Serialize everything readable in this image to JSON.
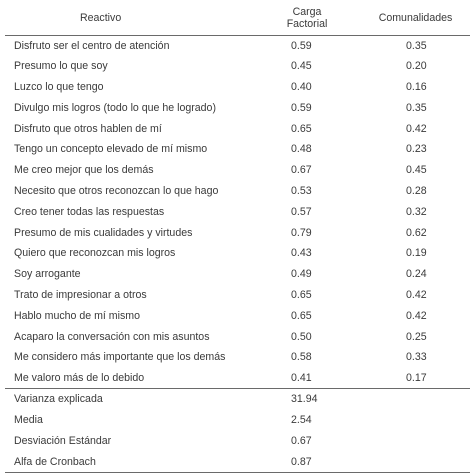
{
  "headers": {
    "reactivo": "Reactivo",
    "carga_line1": "Carga",
    "carga_line2": "Factorial",
    "comunalidades": "Comunalidades"
  },
  "rows": [
    {
      "item": "Disfruto ser el centro de atención",
      "carga": "0.59",
      "comunalidad": "0.35"
    },
    {
      "item": "Presumo lo que soy",
      "carga": "0.45",
      "comunalidad": "0.20"
    },
    {
      "item": "Luzco lo que tengo",
      "carga": "0.40",
      "comunalidad": "0.16"
    },
    {
      "item": "Divulgo mis logros (todo lo que he logrado)",
      "carga": "0.59",
      "comunalidad": "0.35"
    },
    {
      "item": "Disfruto que otros hablen de mí",
      "carga": "0.65",
      "comunalidad": "0.42"
    },
    {
      "item": "Tengo un concepto elevado de mí mismo",
      "carga": "0.48",
      "comunalidad": "0.23"
    },
    {
      "item": "Me creo mejor que los demás",
      "carga": "0.67",
      "comunalidad": "0.45"
    },
    {
      "item": "Necesito que otros reconozcan lo que hago",
      "carga": "0.53",
      "comunalidad": "0.28"
    },
    {
      "item": "Creo tener todas las respuestas",
      "carga": "0.57",
      "comunalidad": "0.32"
    },
    {
      "item": "Presumo de mis cualidades y virtudes",
      "carga": "0.79",
      "comunalidad": "0.62"
    },
    {
      "item": "Quiero que reconozcan mis logros",
      "carga": "0.43",
      "comunalidad": "0.19"
    },
    {
      "item": "Soy arrogante",
      "carga": "0.49",
      "comunalidad": "0.24"
    },
    {
      "item": "Trato de impresionar a otros",
      "carga": "0.65",
      "comunalidad": "0.42"
    },
    {
      "item": "Hablo mucho de mí mismo",
      "carga": "0.65",
      "comunalidad": "0.42"
    },
    {
      "item": "Acaparo la conversación con mis asuntos",
      "carga": "0.50",
      "comunalidad": "0.25"
    },
    {
      "item": "Me considero más importante que los demás",
      "carga": "0.58",
      "comunalidad": "0.33"
    },
    {
      "item": "Me valoro más de lo debido",
      "carga": "0.41",
      "comunalidad": "0.17"
    }
  ],
  "summary": [
    {
      "label": "Varianza explicada",
      "value": "31.94"
    },
    {
      "label": "Media",
      "value": "2.54"
    },
    {
      "label": "Desviación Estándar",
      "value": "0.67"
    },
    {
      "label": "Alfa de Cronbach",
      "value": "0.87"
    }
  ]
}
